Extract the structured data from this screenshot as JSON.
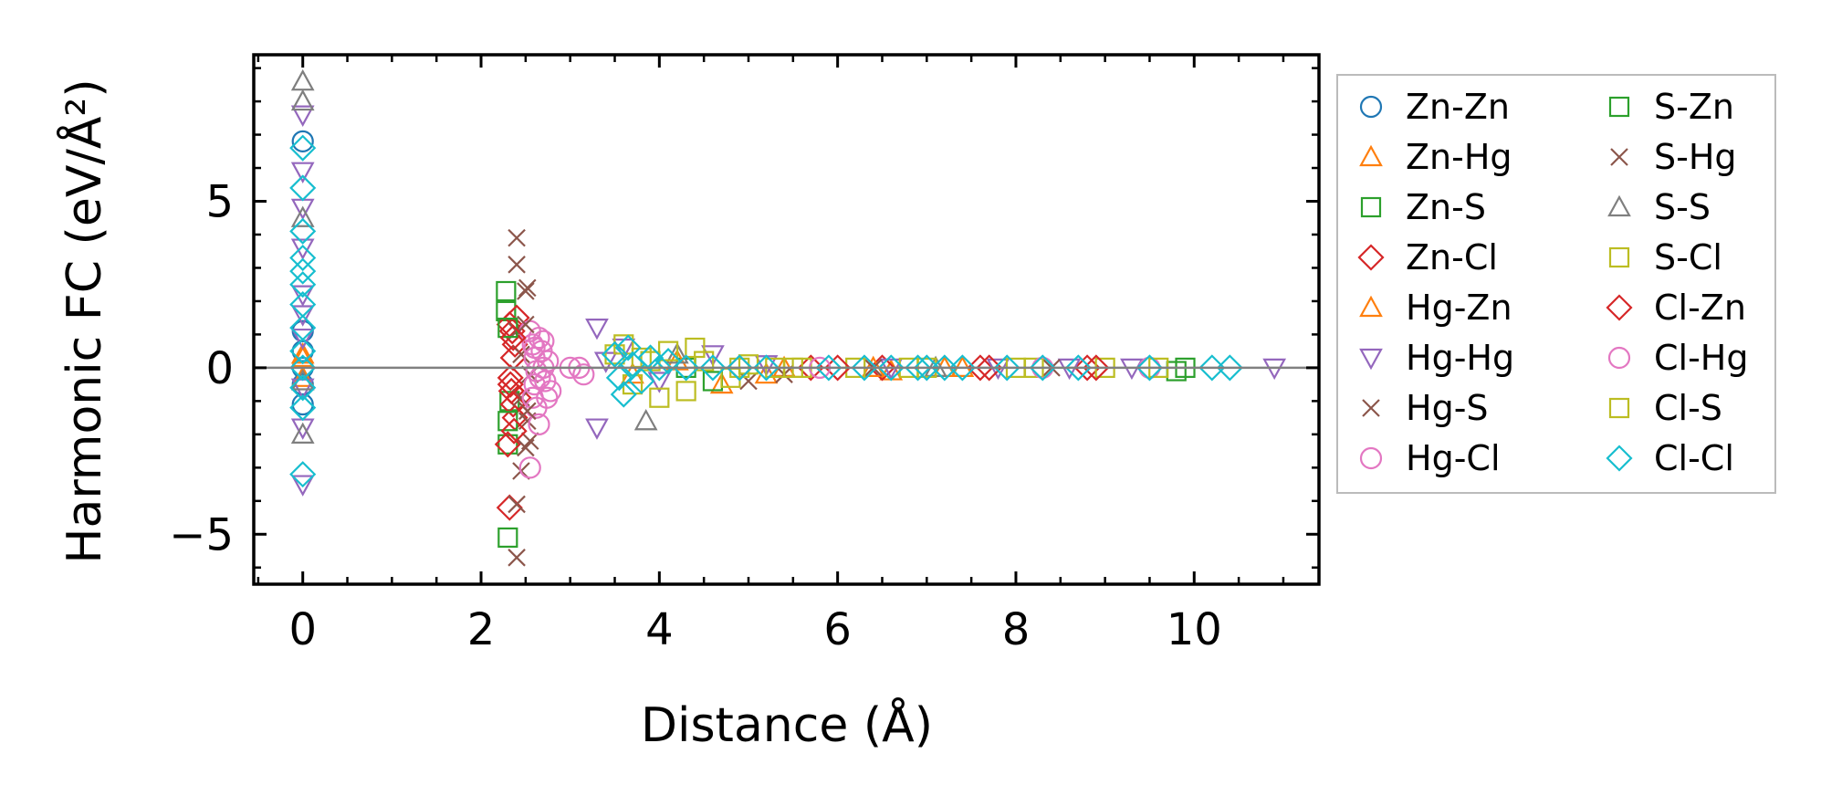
{
  "chart_data": {
    "type": "scatter",
    "title": "",
    "xlabel": "Distance (Å)",
    "ylabel": "Harmonic FC (eV/Å²)",
    "xlim": [
      -0.55,
      11.4
    ],
    "ylim": [
      -6.5,
      9.4
    ],
    "x_ticks": [
      0,
      2,
      4,
      6,
      8,
      10
    ],
    "x_tick_labels": [
      "0",
      "2",
      "4",
      "6",
      "8",
      "10"
    ],
    "y_ticks": [
      -5,
      0,
      5
    ],
    "y_tick_labels": [
      "−5",
      "0",
      "5"
    ],
    "reference_line_y": 0,
    "grid": false,
    "legend_position": "outside-right",
    "series": [
      {
        "name": "Zn-Zn",
        "color": "#1f77b4",
        "marker": "circle",
        "points": [
          [
            0,
            0
          ],
          [
            0,
            1.1
          ],
          [
            0,
            -1.1
          ],
          [
            0,
            6.8
          ],
          [
            0,
            0.5
          ],
          [
            0,
            -0.5
          ]
        ]
      },
      {
        "name": "Zn-Hg",
        "color": "#ff7f0e",
        "marker": "triangle-up",
        "points": [
          [
            0,
            0.3
          ],
          [
            0,
            -0.3
          ],
          [
            4.7,
            -0.5
          ],
          [
            5.2,
            -0.2
          ],
          [
            6.6,
            -0.1
          ],
          [
            7.2,
            0
          ]
        ]
      },
      {
        "name": "Zn-S",
        "color": "#2ca02c",
        "marker": "square",
        "points": [
          [
            2.28,
            2.3
          ],
          [
            2.28,
            1.7
          ],
          [
            2.3,
            -5.1
          ],
          [
            2.3,
            -2.3
          ],
          [
            2.32,
            -1.0
          ],
          [
            4.3,
            0
          ],
          [
            9.9,
            0
          ]
        ]
      },
      {
        "name": "Zn-Cl",
        "color": "#d62728",
        "marker": "diamond",
        "points": [
          [
            2.32,
            1.3
          ],
          [
            2.35,
            1.1
          ],
          [
            2.38,
            0.7
          ],
          [
            2.36,
            0.3
          ],
          [
            2.33,
            -0.3
          ],
          [
            2.34,
            -0.7
          ],
          [
            2.36,
            -1.1
          ],
          [
            2.38,
            -1.5
          ],
          [
            2.3,
            -2.3
          ],
          [
            2.32,
            -4.2
          ],
          [
            2.4,
            1.5
          ],
          [
            2.42,
            -0.9
          ],
          [
            4.9,
            0
          ],
          [
            5.7,
            0
          ],
          [
            6.5,
            0
          ],
          [
            7.6,
            0
          ],
          [
            8.8,
            0
          ]
        ]
      },
      {
        "name": "Hg-Zn",
        "color": "#ff7f0e",
        "marker": "triangle-up",
        "points": [
          [
            0,
            0.4
          ],
          [
            3.7,
            -0.2
          ],
          [
            4.2,
            0.2
          ],
          [
            5.4,
            0
          ],
          [
            6.4,
            0
          ],
          [
            7.4,
            0
          ]
        ]
      },
      {
        "name": "Hg-Hg",
        "color": "#9467bd",
        "marker": "triangle-down",
        "points": [
          [
            0,
            7.6
          ],
          [
            0,
            5.9
          ],
          [
            0,
            4.8
          ],
          [
            0,
            3.6
          ],
          [
            0,
            2.2
          ],
          [
            0,
            1.6
          ],
          [
            0,
            0.9
          ],
          [
            0,
            -0.6
          ],
          [
            0,
            -1.8
          ],
          [
            0,
            -3.5
          ],
          [
            3.3,
            1.2
          ],
          [
            3.3,
            -1.8
          ],
          [
            3.4,
            0.2
          ],
          [
            3.6,
            0.6
          ],
          [
            4.0,
            -0.4
          ],
          [
            4.6,
            0.4
          ],
          [
            5.2,
            0.1
          ],
          [
            6.6,
            0
          ],
          [
            7.8,
            0
          ],
          [
            8.6,
            0
          ],
          [
            9.3,
            0
          ],
          [
            10.9,
            0
          ]
        ]
      },
      {
        "name": "Hg-S",
        "color": "#8c564b",
        "marker": "x",
        "points": [
          [
            2.4,
            3.9
          ],
          [
            2.4,
            3.1
          ],
          [
            2.52,
            2.4
          ],
          [
            2.4,
            1.1
          ],
          [
            2.45,
            0.4
          ],
          [
            2.55,
            -0.2
          ],
          [
            2.45,
            -0.9
          ],
          [
            2.52,
            -1.6
          ],
          [
            2.55,
            -2.2
          ],
          [
            2.45,
            -3.1
          ],
          [
            2.4,
            -4.1
          ],
          [
            2.4,
            -5.7
          ],
          [
            5.0,
            -0.4
          ],
          [
            6.4,
            0
          ],
          [
            8.4,
            0
          ]
        ]
      },
      {
        "name": "Hg-Cl",
        "color": "#e377c2",
        "marker": "circle",
        "points": [
          [
            2.55,
            1.1
          ],
          [
            2.58,
            0.7
          ],
          [
            2.6,
            0.3
          ],
          [
            2.62,
            -0.1
          ],
          [
            2.6,
            -0.5
          ],
          [
            2.58,
            -0.9
          ],
          [
            2.62,
            -1.2
          ],
          [
            2.65,
            0.9
          ],
          [
            2.68,
            0.5
          ],
          [
            2.7,
            0
          ],
          [
            2.72,
            -0.4
          ],
          [
            2.75,
            0.2
          ],
          [
            2.78,
            -0.7
          ],
          [
            2.65,
            -1.7
          ],
          [
            2.55,
            -3.0
          ],
          [
            3.1,
            0
          ],
          [
            3.15,
            -0.2
          ]
        ]
      },
      {
        "name": "S-Zn",
        "color": "#2ca02c",
        "marker": "square",
        "points": [
          [
            2.3,
            1.2
          ],
          [
            2.3,
            -1.6
          ],
          [
            4.6,
            -0.4
          ],
          [
            9.8,
            -0.1
          ]
        ]
      },
      {
        "name": "S-Hg",
        "color": "#8c564b",
        "marker": "x",
        "points": [
          [
            2.5,
            2.3
          ],
          [
            2.5,
            1.3
          ],
          [
            2.52,
            -1.3
          ],
          [
            2.5,
            -2.4
          ],
          [
            5.4,
            -0.2
          ]
        ]
      },
      {
        "name": "S-S",
        "color": "#7f7f7f",
        "marker": "triangle-up",
        "points": [
          [
            0,
            8.6
          ],
          [
            0,
            8.0
          ],
          [
            0,
            4.5
          ],
          [
            0,
            -0.4
          ],
          [
            0,
            -2.0
          ],
          [
            3.85,
            -1.6
          ],
          [
            4.2,
            0.4
          ],
          [
            7.1,
            0
          ]
        ]
      },
      {
        "name": "S-Cl",
        "color": "#bcbd22",
        "marker": "square",
        "points": [
          [
            3.6,
            0.7
          ],
          [
            3.8,
            0.3
          ],
          [
            4.1,
            0.5
          ],
          [
            4.3,
            -0.7
          ],
          [
            4.5,
            0.2
          ],
          [
            4.8,
            -0.3
          ],
          [
            5.0,
            0.1
          ],
          [
            5.3,
            0
          ],
          [
            5.6,
            0
          ],
          [
            6.2,
            0
          ],
          [
            7.0,
            0
          ],
          [
            8.2,
            0
          ],
          [
            9.0,
            0
          ]
        ]
      },
      {
        "name": "Cl-Zn",
        "color": "#d62728",
        "marker": "diamond",
        "points": [
          [
            2.33,
            -0.5
          ],
          [
            2.36,
            0.9
          ],
          [
            2.37,
            -1.9
          ],
          [
            6.0,
            0
          ],
          [
            7.7,
            0
          ],
          [
            8.9,
            0
          ]
        ]
      },
      {
        "name": "Cl-Hg",
        "color": "#e377c2",
        "marker": "circle",
        "points": [
          [
            2.6,
            0.6
          ],
          [
            2.66,
            -0.3
          ],
          [
            2.7,
            0.8
          ],
          [
            2.74,
            -0.9
          ],
          [
            3.0,
            0
          ],
          [
            5.8,
            0
          ],
          [
            8.3,
            0
          ],
          [
            9.5,
            0
          ]
        ]
      },
      {
        "name": "Cl-S",
        "color": "#bcbd22",
        "marker": "square",
        "points": [
          [
            3.5,
            0.4
          ],
          [
            3.7,
            -0.5
          ],
          [
            3.9,
            0.2
          ],
          [
            4.0,
            -0.9
          ],
          [
            4.4,
            0.6
          ],
          [
            4.9,
            0
          ],
          [
            5.5,
            0
          ],
          [
            6.8,
            0
          ],
          [
            8.0,
            0
          ],
          [
            9.6,
            0
          ]
        ]
      },
      {
        "name": "Cl-Cl",
        "color": "#17becf",
        "marker": "diamond",
        "points": [
          [
            0,
            6.6
          ],
          [
            0,
            5.4
          ],
          [
            0,
            4.1
          ],
          [
            0,
            3.3
          ],
          [
            0,
            2.9
          ],
          [
            0,
            2.5
          ],
          [
            0,
            1.9
          ],
          [
            0,
            1.2
          ],
          [
            0,
            0.5
          ],
          [
            0,
            0
          ],
          [
            0,
            -0.6
          ],
          [
            0,
            -1.2
          ],
          [
            0,
            -3.2
          ],
          [
            3.5,
            0.4
          ],
          [
            3.55,
            -0.3
          ],
          [
            3.6,
            -0.8
          ],
          [
            3.65,
            0.6
          ],
          [
            3.7,
            0.1
          ],
          [
            3.8,
            -0.4
          ],
          [
            3.9,
            0.3
          ],
          [
            4.0,
            0
          ],
          [
            4.1,
            0.2
          ],
          [
            4.3,
            0
          ],
          [
            4.6,
            0
          ],
          [
            4.9,
            0
          ],
          [
            5.2,
            0
          ],
          [
            5.9,
            0
          ],
          [
            6.3,
            0
          ],
          [
            6.6,
            0
          ],
          [
            6.9,
            0
          ],
          [
            7.0,
            0
          ],
          [
            7.2,
            0
          ],
          [
            7.4,
            0
          ],
          [
            7.9,
            0
          ],
          [
            8.3,
            0
          ],
          [
            8.7,
            0
          ],
          [
            9.5,
            0
          ],
          [
            10.2,
            0
          ],
          [
            10.4,
            0
          ]
        ]
      }
    ]
  }
}
